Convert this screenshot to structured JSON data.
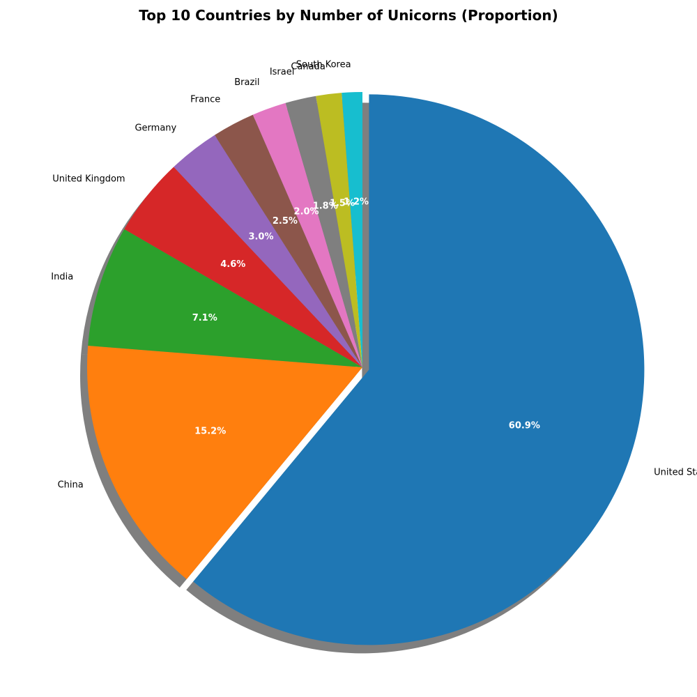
{
  "chart_data": {
    "type": "pie",
    "title": "Top 10 Countries by Number of Unicorns (Proportion)",
    "categories": [
      "United States",
      "China",
      "India",
      "United Kingdom",
      "Germany",
      "France",
      "Brazil",
      "Israel",
      "Canada",
      "South Korea"
    ],
    "values": [
      60.9,
      15.2,
      7.1,
      4.6,
      3.0,
      2.5,
      2.0,
      1.8,
      1.5,
      1.2
    ],
    "value_labels": [
      "60.9%",
      "15.2%",
      "7.1%",
      "4.6%",
      "3.0%",
      "2.5%",
      "2.0%",
      "1.8%",
      "1.5%",
      "1.2%"
    ],
    "colors": [
      "#1f77b4",
      "#ff7f0e",
      "#2ca02c",
      "#d62728",
      "#9467bd",
      "#8c564b",
      "#e377c2",
      "#7f7f7f",
      "#bcbd22",
      "#17becf"
    ],
    "start_angle_deg": 90,
    "direction": "clockwise",
    "exploded": [
      "United States"
    ],
    "shadow": true,
    "legend": "none"
  }
}
